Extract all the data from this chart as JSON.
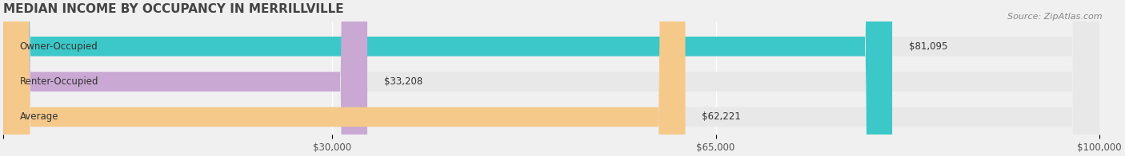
{
  "title": "MEDIAN INCOME BY OCCUPANCY IN MERRILLVILLE",
  "source": "Source: ZipAtlas.com",
  "categories": [
    "Owner-Occupied",
    "Renter-Occupied",
    "Average"
  ],
  "values": [
    81095,
    33208,
    62221
  ],
  "bar_colors": [
    "#3cc8c8",
    "#c9a8d4",
    "#f5c98a"
  ],
  "bar_labels": [
    "$81,095",
    "$33,208",
    "$62,221"
  ],
  "xlim": [
    0,
    100000
  ],
  "xticks": [
    0,
    30000,
    65000,
    100000
  ],
  "xtick_labels": [
    "",
    "$30,000",
    "$65,000",
    "$100,000"
  ],
  "background_color": "#f0f0f0",
  "bar_bg_color": "#e8e8e8",
  "title_fontsize": 11,
  "label_fontsize": 8.5,
  "tick_fontsize": 8.5,
  "source_fontsize": 8
}
